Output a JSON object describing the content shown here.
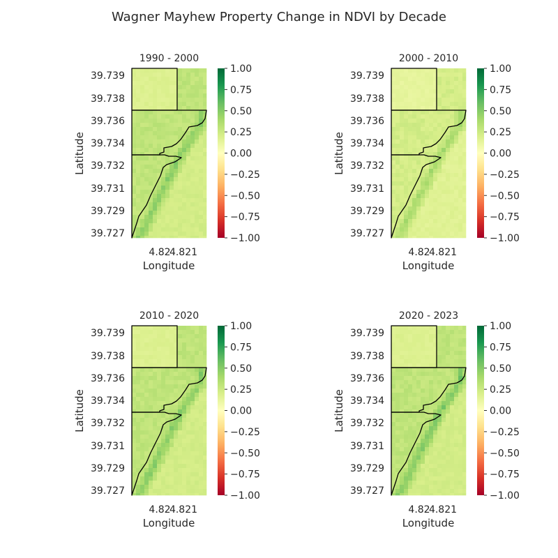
{
  "figure": {
    "title": "Wagner Mayhew Property Change in NDVI by Decade"
  },
  "chart_data": [
    {
      "type": "heatmap",
      "title": "1990 - 2000",
      "xlabel": "Longitude",
      "ylabel": "Latitude",
      "xticks": [
        "4.82",
        "4.821"
      ],
      "yticks": [
        "39.739",
        "39.738",
        "39.736",
        "39.734",
        "39.732",
        "39.731",
        "39.729",
        "39.727"
      ],
      "colorbar": {
        "range": [
          -1.0,
          1.0
        ],
        "ticks": [
          "1.00",
          "0.75",
          "0.50",
          "0.25",
          "0.00",
          "−0.25",
          "−0.50",
          "−0.75",
          "−1.00"
        ],
        "colormap": "RdYlGn"
      },
      "ndvi_change_typical": 0.3,
      "ndvi_change_max": 0.55,
      "outline_color": "#000000"
    },
    {
      "type": "heatmap",
      "title": "2000 - 2010",
      "xlabel": "Longitude",
      "ylabel": "Latitude",
      "xticks": [
        "4.82",
        "4.821"
      ],
      "yticks": [
        "39.739",
        "39.738",
        "39.736",
        "39.734",
        "39.732",
        "39.731",
        "39.729",
        "39.727"
      ],
      "colorbar": {
        "range": [
          -1.0,
          1.0
        ],
        "ticks": [
          "1.00",
          "0.75",
          "0.50",
          "0.25",
          "0.00",
          "−0.25",
          "−0.50",
          "−0.75",
          "−1.00"
        ],
        "colormap": "RdYlGn"
      },
      "ndvi_change_typical": 0.22,
      "ndvi_change_max": 0.45,
      "outline_color": "#000000"
    },
    {
      "type": "heatmap",
      "title": "2010 - 2020",
      "xlabel": "Longitude",
      "ylabel": "Latitude",
      "xticks": [
        "4.82",
        "4.821"
      ],
      "yticks": [
        "39.739",
        "39.738",
        "39.736",
        "39.734",
        "39.732",
        "39.731",
        "39.729",
        "39.727"
      ],
      "colorbar": {
        "range": [
          -1.0,
          1.0
        ],
        "ticks": [
          "1.00",
          "0.75",
          "0.50",
          "0.25",
          "0.00",
          "−0.25",
          "−0.50",
          "−0.75",
          "−1.00"
        ],
        "colormap": "RdYlGn"
      },
      "ndvi_change_typical": 0.3,
      "ndvi_change_max": 0.55,
      "outline_color": "#000000"
    },
    {
      "type": "heatmap",
      "title": "2020 - 2023",
      "xlabel": "Longitude",
      "ylabel": "Latitude",
      "xticks": [
        "4.82",
        "4.821"
      ],
      "yticks": [
        "39.739",
        "39.738",
        "39.736",
        "39.734",
        "39.732",
        "39.731",
        "39.729",
        "39.727"
      ],
      "colorbar": {
        "range": [
          -1.0,
          1.0
        ],
        "ticks": [
          "1.00",
          "0.75",
          "0.50",
          "0.25",
          "0.00",
          "−0.25",
          "−0.50",
          "−0.75",
          "−1.00"
        ],
        "colormap": "RdYlGn"
      },
      "ndvi_change_typical": 0.3,
      "ndvi_change_max": 0.6,
      "outline_color": "#000000"
    }
  ]
}
